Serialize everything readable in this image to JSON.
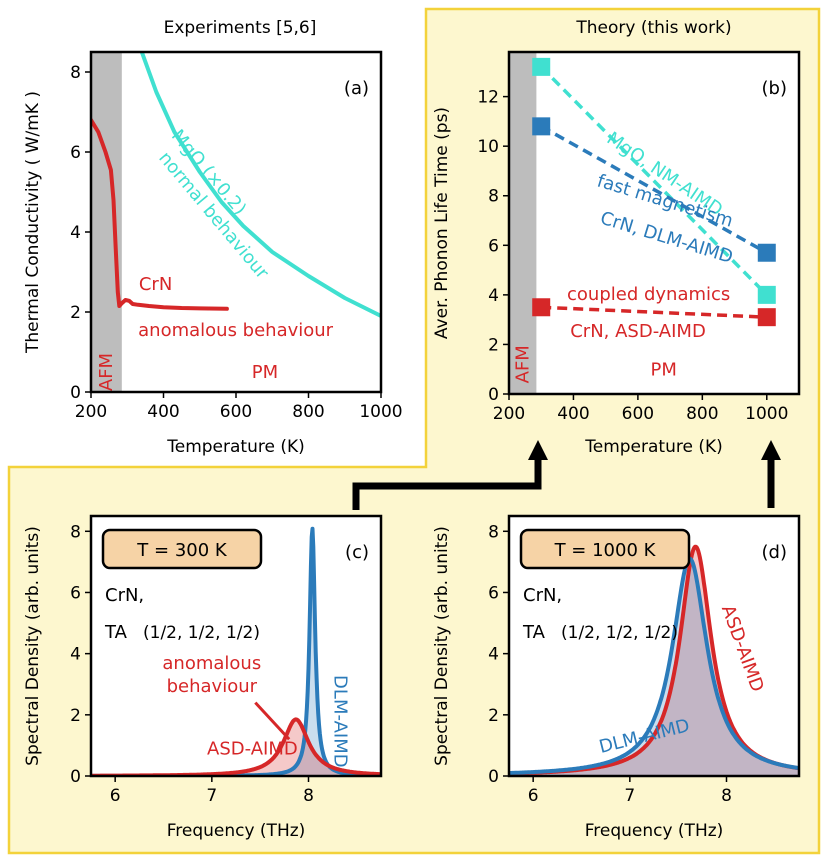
{
  "colors": {
    "panel_bg": "#fdf7cf",
    "panel_border": "#f3d23a",
    "afm_shade": "#bdbdbd",
    "red": "#d62728",
    "blue": "#2b7bba",
    "cyan": "#40e0d0",
    "box_fill": "#f6d3a6"
  },
  "chart_data": [
    {
      "id": "a",
      "type": "line",
      "title": "Experiments [5,6]",
      "panel_label": "(a)",
      "xlabel": "Temperature (K)",
      "ylabel": "Thermal Conductivity ( W/mK )",
      "xlim": [
        200,
        1000
      ],
      "ylim": [
        0,
        8.5
      ],
      "xticks": [
        200,
        400,
        600,
        800,
        1000
      ],
      "yticks": [
        0,
        2,
        4,
        6,
        8
      ],
      "afm_region": [
        200,
        285
      ],
      "region_labels": [
        {
          "text": "AFM",
          "x": 242,
          "y": 0.5,
          "rotate": true
        },
        {
          "text": "PM",
          "x": 680,
          "y": 0.35
        }
      ],
      "series": [
        {
          "name": "CrN",
          "color_key": "red",
          "points": [
            [
              200,
              6.8
            ],
            [
              220,
              6.5
            ],
            [
              240,
              6.0
            ],
            [
              255,
              5.55
            ],
            [
              262,
              4.8
            ],
            [
              268,
              3.6
            ],
            [
              274,
              2.5
            ],
            [
              278,
              2.15
            ],
            [
              285,
              2.22
            ],
            [
              295,
              2.3
            ],
            [
              305,
              2.28
            ],
            [
              315,
              2.2
            ],
            [
              330,
              2.18
            ],
            [
              360,
              2.15
            ],
            [
              400,
              2.12
            ],
            [
              450,
              2.1
            ],
            [
              500,
              2.09
            ],
            [
              575,
              2.08
            ]
          ]
        },
        {
          "name": "MgO (×0.2)",
          "color_key": "cyan",
          "points": [
            [
              340,
              8.5
            ],
            [
              380,
              7.5
            ],
            [
              430,
              6.5
            ],
            [
              500,
              5.5
            ],
            [
              560,
              4.75
            ],
            [
              620,
              4.15
            ],
            [
              700,
              3.5
            ],
            [
              800,
              2.9
            ],
            [
              900,
              2.35
            ],
            [
              1000,
              1.9
            ]
          ]
        }
      ],
      "annotations": [
        {
          "text": "CrN",
          "color_key": "red",
          "x": 332,
          "y": 2.55
        },
        {
          "text": "anomalous behaviour",
          "color_key": "red",
          "x": 330,
          "y": 1.4
        },
        {
          "text": "MgO (×0.2)",
          "color_key": "cyan",
          "x": 420,
          "y": 6.4,
          "rotate": 50
        },
        {
          "text": "normal behaviour",
          "color_key": "cyan",
          "x": 385,
          "y": 5.85,
          "rotate": 50
        }
      ]
    },
    {
      "id": "b",
      "type": "scatter",
      "title": "Theory (this work)",
      "panel_label": "(b)",
      "xlabel": "Temperature (K)",
      "ylabel": "Aver. Phonon Life Time (ps)",
      "xlim": [
        200,
        1100
      ],
      "ylim": [
        0,
        13.8
      ],
      "xticks": [
        200,
        400,
        600,
        800,
        1000
      ],
      "yticks": [
        0,
        2,
        4,
        6,
        8,
        10,
        12
      ],
      "afm_region": [
        200,
        285
      ],
      "region_labels": [
        {
          "text": "AFM",
          "x": 242,
          "y": 1.2,
          "rotate": true
        },
        {
          "text": "PM",
          "x": 680,
          "y": 0.75
        }
      ],
      "series": [
        {
          "name": "MgO, NM-AIMD",
          "color_key": "cyan",
          "x": [
            300,
            1000
          ],
          "y": [
            13.2,
            4.0
          ]
        },
        {
          "name": "CrN, DLM-AIMD",
          "color_key": "blue",
          "x": [
            300,
            1000
          ],
          "y": [
            10.8,
            5.7
          ]
        },
        {
          "name": "CrN, ASD-AIMD",
          "color_key": "red",
          "x": [
            300,
            1000
          ],
          "y": [
            3.5,
            3.1
          ]
        }
      ],
      "annotations": [
        {
          "text": "MgO, NM-AIMD",
          "color_key": "cyan",
          "x": 500,
          "y": 10.2,
          "rotate": 34
        },
        {
          "text": "fast magnetism",
          "color_key": "blue",
          "x": 470,
          "y": 8.4,
          "rotate": 17
        },
        {
          "text": "CrN, DLM-AIMD",
          "color_key": "blue",
          "x": 480,
          "y": 6.9,
          "rotate": 17
        },
        {
          "text": "coupled dynamics",
          "color_key": "red",
          "x": 380,
          "y": 3.8
        },
        {
          "text": "CrN, ASD-AIMD",
          "color_key": "red",
          "x": 390,
          "y": 2.3
        }
      ]
    },
    {
      "id": "c",
      "type": "area",
      "panel_label": "(c)",
      "temperature_box": "T = 300 K",
      "mode_label_1": "CrN,",
      "mode_label_2": "TA",
      "q_point": "(1/2, 1/2, 1/2)",
      "xlabel": "Frequency (THz)",
      "ylabel": "Spectral Density (arb. units)",
      "xlim": [
        5.75,
        8.75
      ],
      "ylim": [
        0,
        8.5
      ],
      "xticks": [
        6,
        7,
        8
      ],
      "yticks": [
        0,
        2,
        4,
        6,
        8
      ],
      "series": [
        {
          "name": "DLM-AIMD",
          "color_key": "blue",
          "center": 8.04,
          "width": 0.035,
          "peak": 8.1
        },
        {
          "name": "ASD-AIMD",
          "color_key": "red",
          "center": 7.87,
          "width": 0.16,
          "peak": 1.85
        }
      ],
      "annotations": [
        {
          "text": "DLM-AIMD",
          "color_key": "blue",
          "x": 8.27,
          "y": 3.3,
          "rotate": 90
        },
        {
          "text": "ASD-AIMD",
          "color_key": "red",
          "x": 6.95,
          "y": 0.7
        },
        {
          "text": "anomalous",
          "color_key": "red",
          "x": 7.0,
          "y": 3.5
        },
        {
          "text": "behaviour",
          "color_key": "red",
          "x": 7.0,
          "y": 2.75
        }
      ]
    },
    {
      "id": "d",
      "type": "area",
      "panel_label": "(d)",
      "temperature_box": "T = 1000 K",
      "mode_label_1": "CrN,",
      "mode_label_2": "TA",
      "q_point": "(1/2, 1/2, 1/2)",
      "xlabel": "Frequency (THz)",
      "ylabel": "Spectral Density (arb. units)",
      "xlim": [
        5.75,
        8.75
      ],
      "ylim": [
        0,
        8.5
      ],
      "xticks": [
        6,
        7,
        8
      ],
      "yticks": [
        0,
        2,
        4,
        6,
        8
      ],
      "series": [
        {
          "name": "ASD-AIMD",
          "color_key": "red",
          "center": 7.68,
          "width": 0.2,
          "peak": 7.5
        },
        {
          "name": "DLM-AIMD",
          "color_key": "blue",
          "center": 7.62,
          "width": 0.22,
          "peak": 7.1
        }
      ],
      "annotations": [
        {
          "text": "ASD-AIMD",
          "color_key": "red",
          "x": 7.95,
          "y": 5.5,
          "rotate": 70
        },
        {
          "text": "DLM-AIMD",
          "color_key": "blue",
          "x": 6.7,
          "y": 0.75,
          "rotate": -14
        }
      ]
    }
  ]
}
